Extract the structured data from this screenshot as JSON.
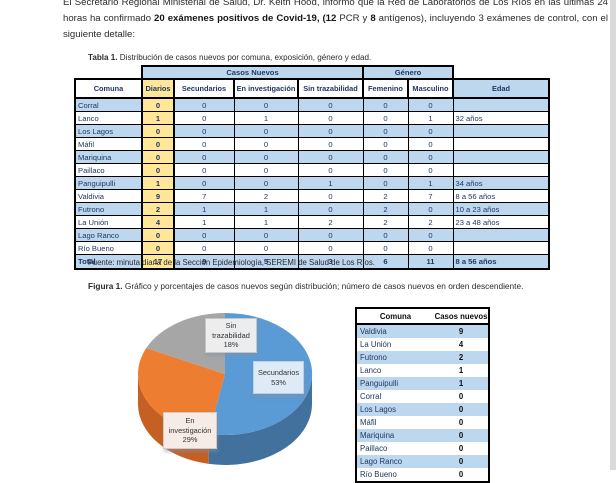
{
  "intro": {
    "segments": [
      {
        "text": "El Secretario Regional Ministerial de Salud, Dr. Keith Hood, informó que la Red de Laboratorios de Los Ríos en las últimas 24 horas ha confirmado "
      },
      {
        "text": "20 exámenes positivos de Covid-19, (12"
      },
      {
        "text": " PCR y "
      },
      {
        "text": "8"
      },
      {
        "text": " antígenos), incluyendo 3 exámenes de control, con el siguiente detalle:"
      }
    ]
  },
  "tabla1": {
    "caption_label": "Tabla 1.",
    "caption_text": "Distribución de casos nuevos por comuna, exposición, género y edad.",
    "band": {
      "casos_nuevos": "Casos Nuevos",
      "genero": "Género"
    },
    "columns": [
      "Comuna",
      "Diarios",
      "Secundarios",
      "En investigación",
      "Sin trazabilidad",
      "Femenino",
      "Masculino",
      "Edad"
    ],
    "rows": [
      {
        "comuna": "Corral",
        "values": [
          "0",
          "0",
          "0",
          "0",
          "0",
          "0"
        ],
        "edad": ""
      },
      {
        "comuna": "Lanco",
        "values": [
          "1",
          "0",
          "1",
          "0",
          "0",
          "1"
        ],
        "edad": "32 años"
      },
      {
        "comuna": "Los Lagos",
        "values": [
          "0",
          "0",
          "0",
          "0",
          "0",
          "0"
        ],
        "edad": ""
      },
      {
        "comuna": "Máfil",
        "values": [
          "0",
          "0",
          "0",
          "0",
          "0",
          "0"
        ],
        "edad": ""
      },
      {
        "comuna": "Mariquina",
        "values": [
          "0",
          "0",
          "0",
          "0",
          "0",
          "0"
        ],
        "edad": ""
      },
      {
        "comuna": "Paillaco",
        "values": [
          "0",
          "0",
          "0",
          "0",
          "0",
          "0"
        ],
        "edad": ""
      },
      {
        "comuna": "Panguipulli",
        "values": [
          "1",
          "0",
          "0",
          "1",
          "0",
          "1"
        ],
        "edad": "34 años"
      },
      {
        "comuna": "Valdivia",
        "values": [
          "9",
          "7",
          "2",
          "0",
          "2",
          "7"
        ],
        "edad": "8 a 56 años"
      },
      {
        "comuna": "Futrono",
        "values": [
          "2",
          "1",
          "1",
          "0",
          "2",
          "0"
        ],
        "edad": "10 a 23 años"
      },
      {
        "comuna": "La Unión",
        "values": [
          "4",
          "1",
          "1",
          "2",
          "2",
          "2"
        ],
        "edad": "23 a 48 años"
      },
      {
        "comuna": "Lago Ranco",
        "values": [
          "0",
          "0",
          "0",
          "0",
          "0",
          "0"
        ],
        "edad": ""
      },
      {
        "comuna": "Río Bueno",
        "values": [
          "0",
          "0",
          "0",
          "0",
          "0",
          "0"
        ],
        "edad": ""
      }
    ],
    "total_row": {
      "comuna": "Total",
      "values": [
        "17",
        "9",
        "5",
        "3",
        "6",
        "11"
      ],
      "edad": "8 a 56 años"
    },
    "fuente": "Fuente: minuta diaria de la Sección Epidemiología, SEREMI de Salud de Los Ríos."
  },
  "figura": {
    "caption_label": "Figura 1.",
    "caption_text": "Gráfico y porcentajes de casos nuevos según distribución; número de casos nuevos en orden descendiente."
  },
  "chart_data": {
    "type": "pie",
    "style": "3d",
    "labels": [
      "Secundarios",
      "En investigación",
      "Sin trazabilidad"
    ],
    "values": [
      53,
      29,
      18
    ],
    "pct_labels": [
      "53%",
      "29%",
      "18%"
    ],
    "colors": [
      "#5B9BD5",
      "#ED7D31",
      "#A6A6A6"
    ],
    "side_colors": [
      "#41719C",
      "#C55F22",
      "#7F7F7F"
    ],
    "start_angle_deg": 0,
    "direction": "clockwise",
    "legend": "none"
  },
  "ranking_table": {
    "columns": [
      "Comuna",
      "Casos nuevos"
    ],
    "rows": [
      {
        "comuna": "Valdivia",
        "value": "9"
      },
      {
        "comuna": "La Unión",
        "value": "4"
      },
      {
        "comuna": "Futrono",
        "value": "2"
      },
      {
        "comuna": "Lanco",
        "value": "1"
      },
      {
        "comuna": "Panguipulli",
        "value": "1"
      },
      {
        "comuna": "Corral",
        "value": "0"
      },
      {
        "comuna": "Los Lagos",
        "value": "0"
      },
      {
        "comuna": "Máfil",
        "value": "0"
      },
      {
        "comuna": "Mariquina",
        "value": "0"
      },
      {
        "comuna": "Paillaco",
        "value": "0"
      },
      {
        "comuna": "Lago Ranco",
        "value": "0"
      },
      {
        "comuna": "Río Bueno",
        "value": "0"
      }
    ]
  },
  "colors": {
    "row_blue": "#BDD7EE",
    "diarios_yellow": "#FFE699",
    "table_text_navy": "#1F3864"
  }
}
